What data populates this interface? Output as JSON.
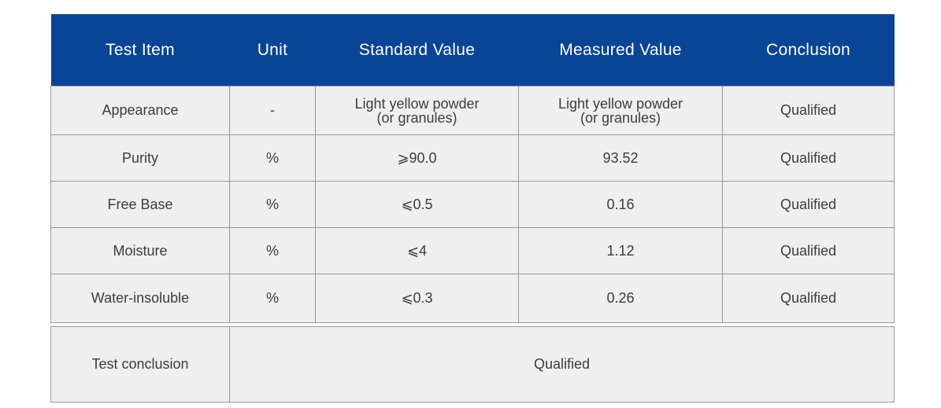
{
  "colors": {
    "header_bg": "#0a4496",
    "header_text": "#ffffff",
    "row_bg": "#efefef",
    "grid_line": "#999999",
    "body_text": "#3d3d3d"
  },
  "chart_data": {
    "type": "table",
    "columns": [
      "Test Item",
      "Unit",
      "Standard Value",
      "Measured Value",
      "Conclusion"
    ],
    "rows": [
      [
        "Appearance",
        "-",
        "Light yellow powder\n(or granules)",
        "Light yellow powder\n(or granules)",
        "Qualified"
      ],
      [
        "Purity",
        "%",
        "⩾90.0",
        "93.52",
        "Qualified"
      ],
      [
        "Free Base",
        "%",
        "⩽0.5",
        "0.16",
        "Qualified"
      ],
      [
        "Moisture",
        "%",
        "⩽4",
        "1.12",
        "Qualified"
      ],
      [
        "Water-insoluble",
        "%",
        "⩽0.3",
        "0.26",
        "Qualified"
      ]
    ],
    "footer_row": {
      "label": "Test conclusion",
      "value": "Qualified"
    },
    "layout": "header row blue with white centered labels; body rows light gray with gray gridlines; last summary row spans columns 2-5"
  }
}
